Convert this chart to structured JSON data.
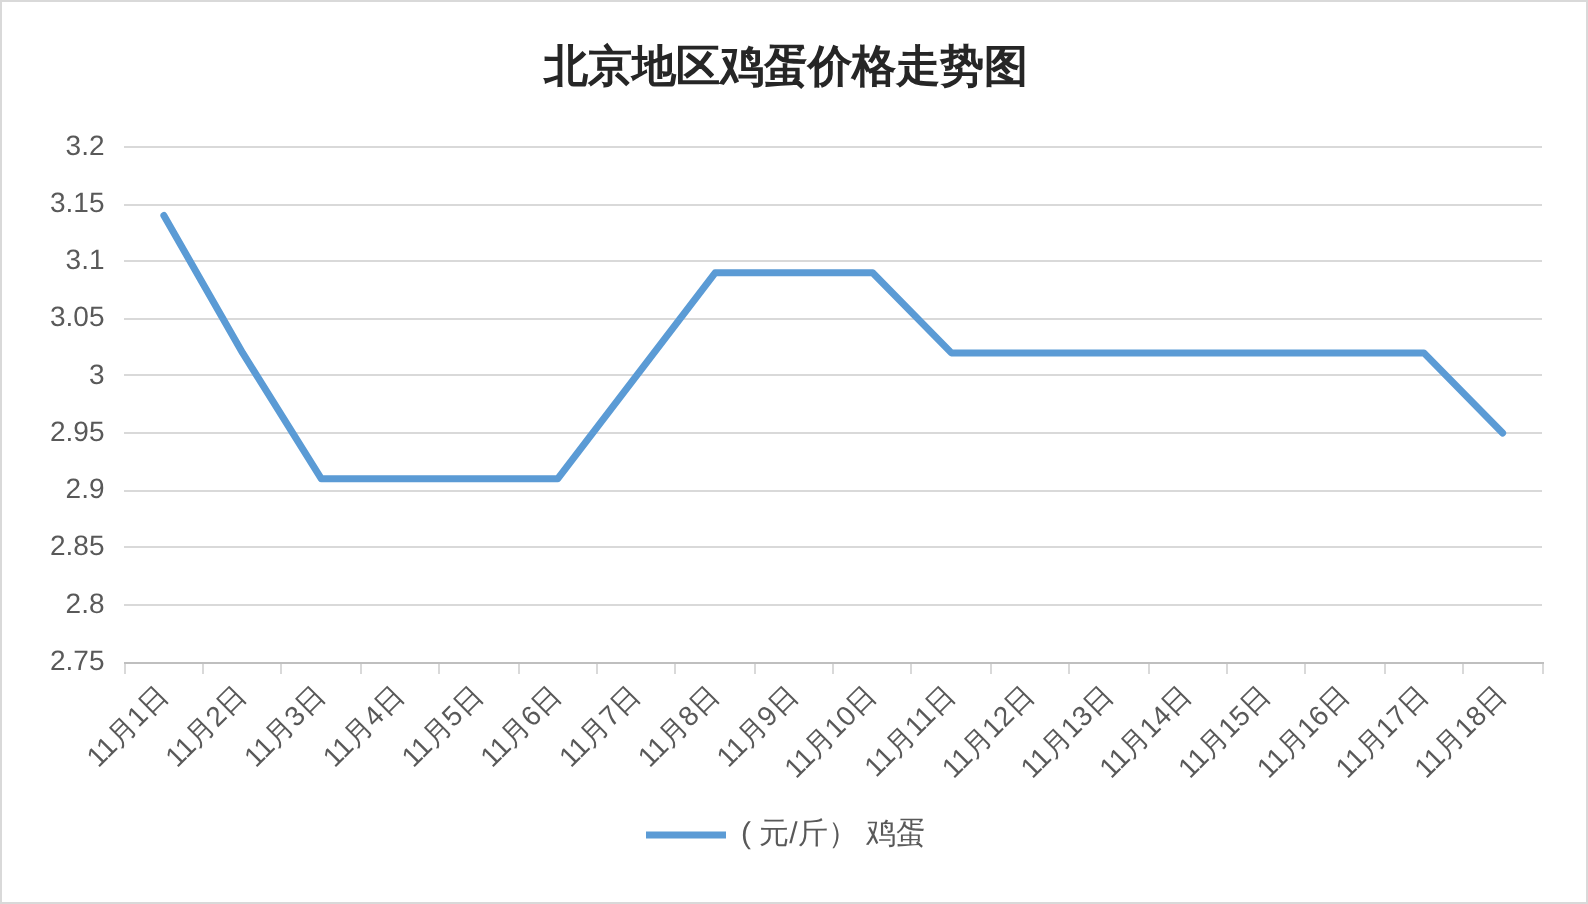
{
  "chart_data": {
    "type": "line",
    "title": "北京地区鸡蛋价格走势图",
    "categories": [
      "11月1日",
      "11月2日",
      "11月3日",
      "11月4日",
      "11月5日",
      "11月6日",
      "11月7日",
      "11月8日",
      "11月9日",
      "11月10日",
      "11月11日",
      "11月12日",
      "11月13日",
      "11月14日",
      "11月15日",
      "11月16日",
      "11月17日",
      "11月18日"
    ],
    "series": [
      {
        "name": "( 元/斤） 鸡蛋",
        "color": "#5b9bd5",
        "values": [
          3.14,
          3.02,
          2.91,
          2.91,
          2.91,
          2.91,
          3.0,
          3.09,
          3.09,
          3.09,
          3.02,
          3.02,
          3.02,
          3.02,
          3.02,
          3.02,
          3.02,
          2.95
        ]
      }
    ],
    "ylim": [
      2.75,
      3.2
    ],
    "yticks": [
      2.75,
      2.8,
      2.85,
      2.9,
      2.95,
      3,
      3.05,
      3.1,
      3.15,
      3.2
    ],
    "grid": "y",
    "legend": "bottom",
    "marker": "none",
    "line_style": "solid"
  }
}
